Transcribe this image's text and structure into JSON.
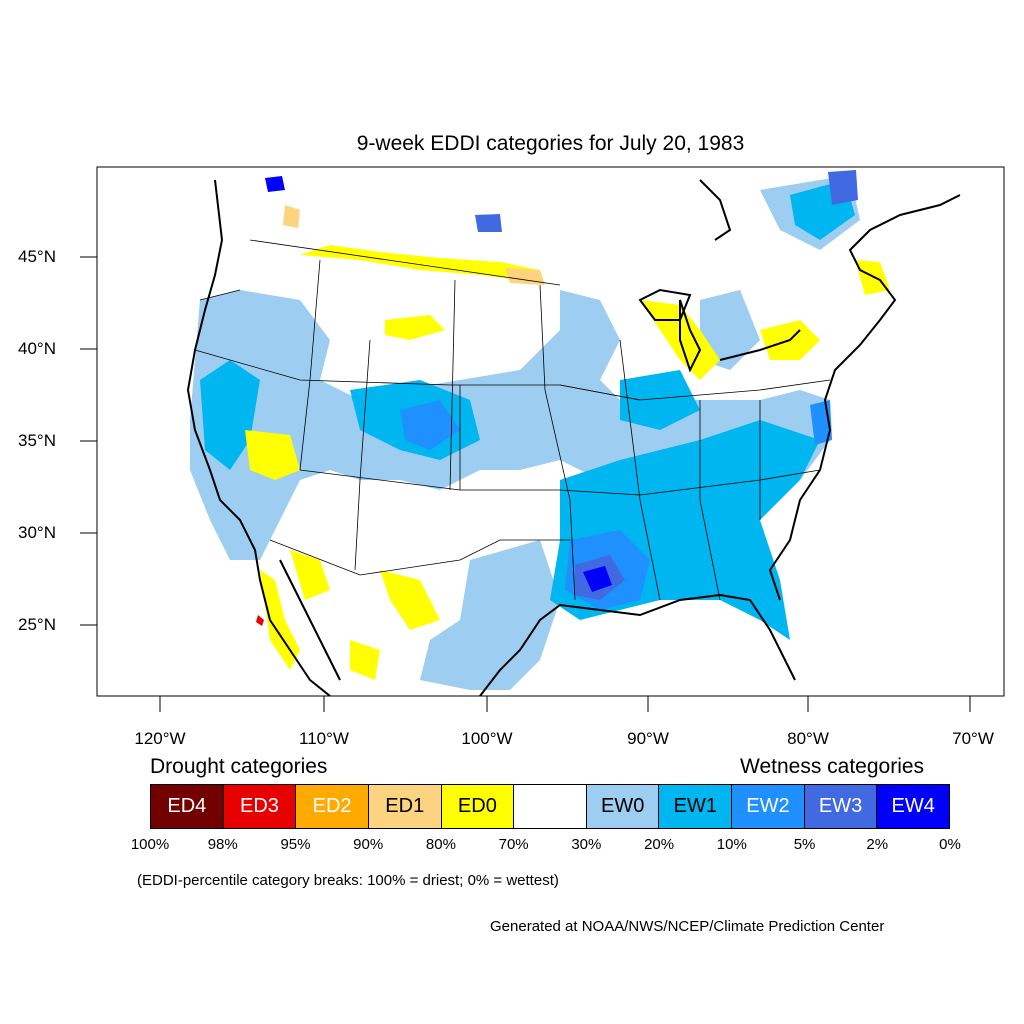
{
  "title": "9-week EDDI categories for July 20, 1983",
  "latitude_labels": [
    "45°N",
    "40°N",
    "35°N",
    "30°N",
    "25°N"
  ],
  "longitude_labels": [
    "120°W",
    "110°W",
    "100°W",
    "90°W",
    "80°W",
    "70°W"
  ],
  "legend": {
    "drought_heading": "Drought categories",
    "wetness_heading": "Wetness categories",
    "categories": [
      {
        "label": "ED4",
        "color": "#730000",
        "text_color": "#ffffff"
      },
      {
        "label": "ED3",
        "color": "#e60000",
        "text_color": "#ffffff"
      },
      {
        "label": "ED2",
        "color": "#ffaa00",
        "text_color": "#ffffff"
      },
      {
        "label": "ED1",
        "color": "#fcd37f",
        "text_color": "#000000"
      },
      {
        "label": "ED0",
        "color": "#ffff00",
        "text_color": "#000000"
      },
      {
        "label": "",
        "color": "#ffffff",
        "text_color": "#000000"
      },
      {
        "label": "EW0",
        "color": "#9dcdf0",
        "text_color": "#000000"
      },
      {
        "label": "EW1",
        "color": "#00b6f0",
        "text_color": "#000000"
      },
      {
        "label": "EW2",
        "color": "#1e90ff",
        "text_color": "#ffffff"
      },
      {
        "label": "EW3",
        "color": "#4169e1",
        "text_color": "#ffffff"
      },
      {
        "label": "EW4",
        "color": "#0000ff",
        "text_color": "#ffffff"
      }
    ],
    "breaks": [
      "100%",
      "98%",
      "95%",
      "90%",
      "80%",
      "70%",
      "30%",
      "20%",
      "10%",
      "5%",
      "2%",
      "0%"
    ]
  },
  "note": "(EDDI-percentile category breaks: 100% = driest; 0% = wettest)",
  "credit": "Generated at NOAA/NWS/NCEP/Climate Prediction Center"
}
